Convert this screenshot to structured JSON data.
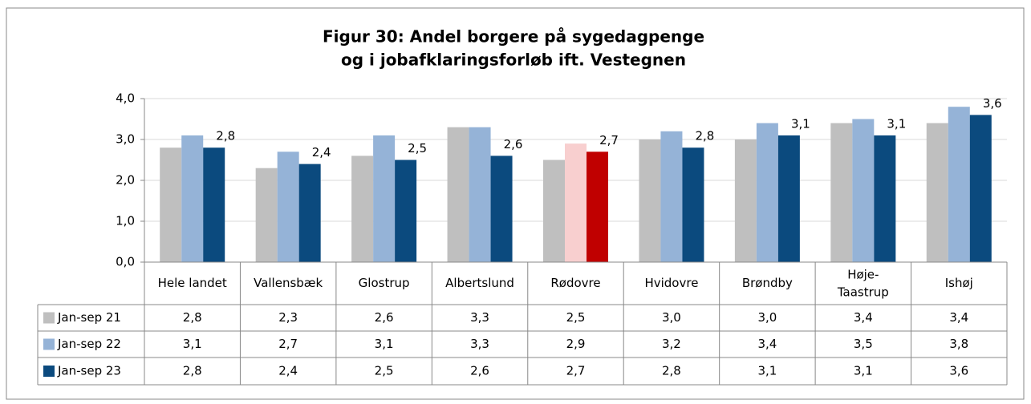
{
  "chart_data": {
    "type": "bar",
    "title": [
      "Figur 30: Andel borgere på sygedagpenge",
      "og i jobafklaringsforløb ift. Vestegnen"
    ],
    "categories": [
      "Hele landet",
      "Vallensbæk",
      "Glostrup",
      "Albertslund",
      "Rødovre",
      "Hvidovre",
      "Brøndby",
      "Høje-Taastrup",
      "Ishøj"
    ],
    "series": [
      {
        "name": "Jan-sep 21",
        "color": "#bfbfbf",
        "highlight_color": "#bfbfbf",
        "values": [
          2.8,
          2.3,
          2.6,
          3.3,
          2.5,
          3.0,
          3.0,
          3.4,
          3.4
        ],
        "value_labels": [
          "2,8",
          "2,3",
          "2,6",
          "3,3",
          "2,5",
          "3,0",
          "3,0",
          "3,4",
          "3,4"
        ]
      },
      {
        "name": "Jan-sep 22",
        "color": "#95b3d7",
        "highlight_color": "#f8cfcf",
        "values": [
          3.1,
          2.7,
          3.1,
          3.3,
          2.9,
          3.2,
          3.4,
          3.5,
          3.8
        ],
        "value_labels": [
          "3,1",
          "2,7",
          "3,1",
          "3,3",
          "2,9",
          "3,2",
          "3,4",
          "3,5",
          "3,8"
        ]
      },
      {
        "name": "Jan-sep 23",
        "color": "#0b4a7e",
        "highlight_color": "#c00000",
        "data_labels": true,
        "values": [
          2.8,
          2.4,
          2.5,
          2.6,
          2.7,
          2.8,
          3.1,
          3.1,
          3.6
        ],
        "value_labels": [
          "2,8",
          "2,4",
          "2,5",
          "2,6",
          "2,7",
          "2,8",
          "3,1",
          "3,1",
          "3,6"
        ]
      }
    ],
    "highlight": "Rødovre",
    "ylim": [
      0,
      4
    ],
    "yticks": [
      {
        "value": 0,
        "label": "0,0"
      },
      {
        "value": 1,
        "label": "1,0"
      },
      {
        "value": 2,
        "label": "2,0"
      },
      {
        "value": 3,
        "label": "3,0"
      },
      {
        "value": 4,
        "label": "4,0"
      }
    ],
    "grid": true,
    "data_table": true
  }
}
